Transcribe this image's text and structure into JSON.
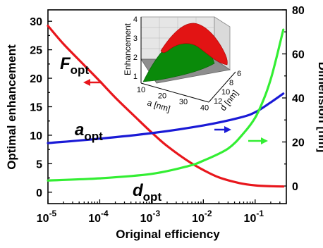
{
  "chart_data": {
    "type": "line",
    "xlabel": "Original efficiency",
    "ylabel_left": "Optimal enhancement",
    "ylabel_right": "Dimension  [nm]",
    "x_scale": "log",
    "xlim": [
      1e-05,
      0.4
    ],
    "ylim_left": [
      -2,
      32
    ],
    "ylim_right": [
      -8,
      80
    ],
    "x_tick_labels": [
      {
        "base": "10",
        "exp": "-5",
        "value": 1e-05
      },
      {
        "base": "10",
        "exp": "-4",
        "value": 0.0001
      },
      {
        "base": "10",
        "exp": "-3",
        "value": 0.001
      },
      {
        "base": "10",
        "exp": "-2",
        "value": 0.01
      },
      {
        "base": "10",
        "exp": "-1",
        "value": 0.1
      }
    ],
    "y_left_ticks": [
      "0",
      "5",
      "10",
      "15",
      "20",
      "25",
      "30"
    ],
    "y_right_ticks": [
      "0",
      "20",
      "40",
      "60",
      "80"
    ],
    "series": [
      {
        "name": "F_opt",
        "label_main": "F",
        "label_sub": "opt",
        "color": "#e8161c",
        "axis": "left",
        "points": [
          [
            1e-05,
            29.2
          ],
          [
            2e-05,
            26.0
          ],
          [
            5e-05,
            22.3
          ],
          [
            0.0001,
            19.5
          ],
          [
            0.0002,
            16.6
          ],
          [
            0.0005,
            13.1
          ],
          [
            0.001,
            10.5
          ],
          [
            0.002,
            8.1
          ],
          [
            0.005,
            5.5
          ],
          [
            0.01,
            3.9
          ],
          [
            0.02,
            2.6
          ],
          [
            0.05,
            1.6
          ],
          [
            0.1,
            1.2
          ],
          [
            0.2,
            1.05
          ],
          [
            0.35,
            1.0
          ]
        ]
      },
      {
        "name": "a_opt",
        "label_main": "a",
        "label_sub": "opt",
        "color": "#1a1ad6",
        "axis": "right",
        "points": [
          [
            1e-05,
            19.5
          ],
          [
            0.0001,
            21.5
          ],
          [
            0.001,
            24.0
          ],
          [
            0.01,
            27.5
          ],
          [
            0.05,
            31.0
          ],
          [
            0.1,
            33.5
          ],
          [
            0.2,
            38.0
          ],
          [
            0.35,
            42.0
          ]
        ]
      },
      {
        "name": "d_opt",
        "label_main": "d",
        "label_sub": "opt",
        "color": "#33ee33",
        "axis": "right",
        "points": [
          [
            1e-05,
            2.5
          ],
          [
            0.0001,
            3.5
          ],
          [
            0.001,
            5.5
          ],
          [
            0.005,
            9.0
          ],
          [
            0.01,
            11.5
          ],
          [
            0.03,
            17.0
          ],
          [
            0.06,
            24.0
          ],
          [
            0.1,
            31.0
          ],
          [
            0.15,
            40.0
          ],
          [
            0.2,
            48.5
          ],
          [
            0.25,
            57.0
          ],
          [
            0.3,
            64.5
          ],
          [
            0.35,
            71.0
          ]
        ]
      }
    ],
    "inset": {
      "type": "surface3d",
      "zlabel": "Enhancement",
      "xlabel": "a [nm]",
      "ylabel": "d [nm]",
      "z_ticks": [
        "1",
        "2",
        "3",
        "4"
      ],
      "x_ticks": [
        "10",
        "20",
        "30",
        "40"
      ],
      "y_ticks": [
        "6",
        "8",
        "10",
        "12"
      ]
    }
  }
}
